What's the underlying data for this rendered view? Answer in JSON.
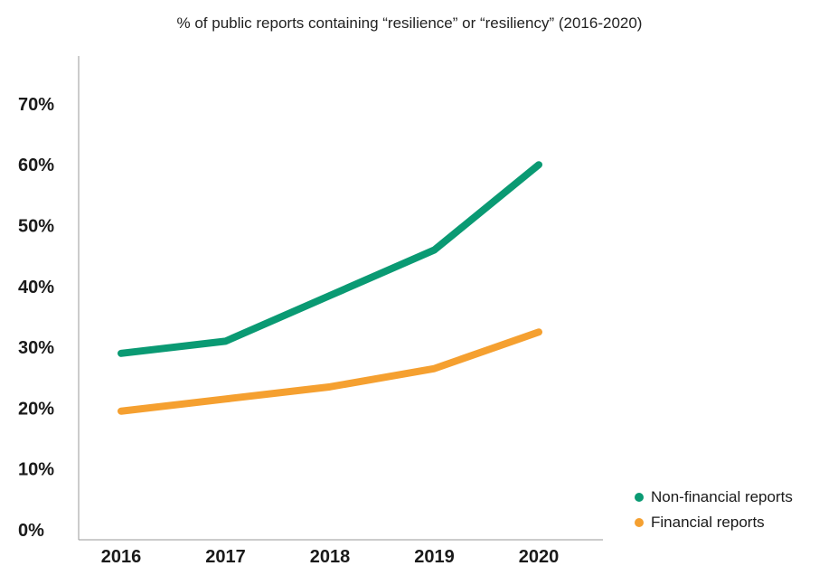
{
  "chart_data": {
    "type": "line",
    "title": "% of public reports containing “resilience” or “resiliency” (2016-2020)",
    "xlabel": "",
    "ylabel": "",
    "categories": [
      "2016",
      "2017",
      "2018",
      "2019",
      "2020"
    ],
    "yticks": [
      "0%",
      "10%",
      "20%",
      "30%",
      "40%",
      "50%",
      "60%",
      "70%"
    ],
    "ylim": [
      0,
      75
    ],
    "grid": false,
    "legend_position": "bottom-right",
    "series": [
      {
        "name": "Non-financial reports",
        "color": "#0a9a73",
        "values": [
          29,
          31,
          38.5,
          46,
          60
        ]
      },
      {
        "name": "Financial reports",
        "color": "#f5a030",
        "values": [
          19.5,
          21.5,
          23.5,
          26.5,
          32.5
        ]
      }
    ]
  }
}
